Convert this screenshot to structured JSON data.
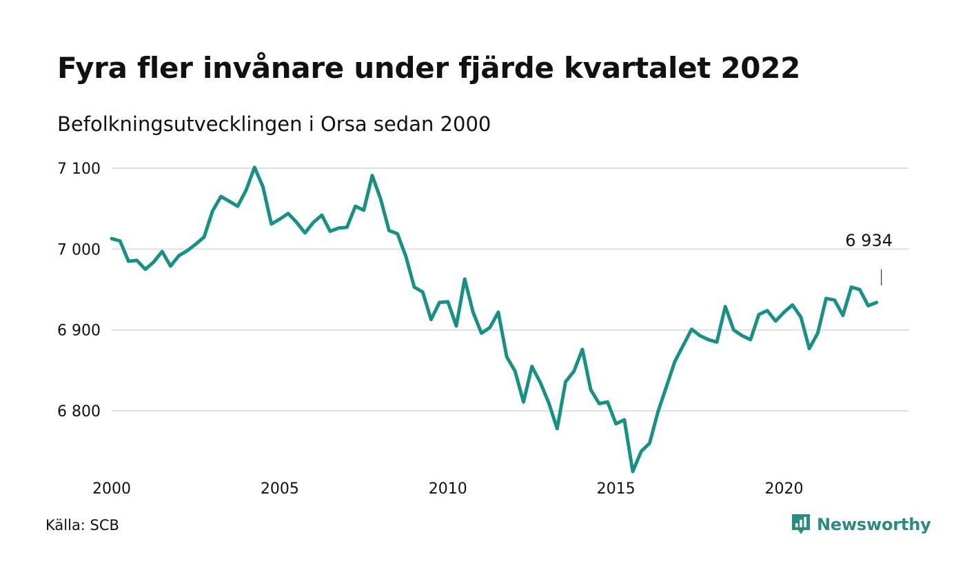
{
  "title": "Fyra fler invånare under fjärde kvartalet 2022",
  "subtitle": "Befolkningsutvecklingen i Orsa sedan 2000",
  "source": "Källa: SCB",
  "brand": {
    "name": "Newsworthy",
    "icon": "newsworthy-logo-icon",
    "color": "#2b8a83"
  },
  "colors": {
    "line": "#169185",
    "grid": "#dedede",
    "text": "#111111"
  },
  "chart_data": {
    "type": "line",
    "title": "Fyra fler invånare under fjärde kvartalet 2022",
    "subtitle": "Befolkningsutvecklingen i Orsa sedan 2000",
    "xlabel": "",
    "ylabel": "",
    "xlim": [
      2000,
      2023.7
    ],
    "ylim": [
      6720,
      7100
    ],
    "y_ticks": [
      6800,
      6900,
      7000,
      7100
    ],
    "y_tick_labels": [
      "6 800",
      "6 900",
      "7 000",
      "7 100"
    ],
    "x_ticks": [
      2000,
      2005,
      2010,
      2015,
      2020
    ],
    "x_tick_labels": [
      "2000",
      "2005",
      "2010",
      "2015",
      "2020"
    ],
    "grid": "horizontal",
    "series": [
      {
        "x": [
          2000.0,
          2000.25,
          2000.5,
          2000.75,
          2001.0,
          2001.25,
          2001.5,
          2001.75,
          2002.0,
          2002.25,
          2002.5,
          2002.75,
          2003.0,
          2003.25,
          2003.5,
          2003.75,
          2004.0,
          2004.25,
          2004.5,
          2004.75,
          2005.0,
          2005.25,
          2005.5,
          2005.75,
          2006.0,
          2006.25,
          2006.5,
          2006.75,
          2007.0,
          2007.25,
          2007.5,
          2007.75,
          2008.0,
          2008.25,
          2008.5,
          2008.75,
          2009.0,
          2009.25,
          2009.5,
          2009.75,
          2010.0,
          2010.25,
          2010.5,
          2010.75,
          2011.0,
          2011.25,
          2011.5,
          2011.75,
          2012.0,
          2012.25,
          2012.5,
          2012.75,
          2013.0,
          2013.25,
          2013.5,
          2013.75,
          2014.0,
          2014.25,
          2014.5,
          2014.75,
          2015.0,
          2015.25,
          2015.5,
          2015.75,
          2016.0,
          2016.25,
          2016.5,
          2016.75,
          2017.0,
          2017.25,
          2017.5,
          2017.75,
          2018.0,
          2018.25,
          2018.5,
          2018.75,
          2019.0,
          2019.25,
          2019.5,
          2019.75,
          2020.0,
          2020.25,
          2020.5,
          2020.75,
          2021.0,
          2021.25,
          2021.5,
          2021.75,
          2022.0,
          2022.25,
          2022.5,
          2022.75
        ],
        "y": [
          7013,
          7010,
          6985,
          6986,
          6975,
          6984,
          6997,
          6979,
          6992,
          6998,
          7006,
          7015,
          7047,
          7065,
          7059,
          7053,
          7073,
          7101,
          7077,
          7031,
          7037,
          7044,
          7033,
          7020,
          7033,
          7042,
          7022,
          7026,
          7027,
          7053,
          7048,
          7091,
          7062,
          7023,
          7019,
          6991,
          6953,
          6947,
          6913,
          6934,
          6935,
          6905,
          6963,
          6922,
          6896,
          6903,
          6922,
          6867,
          6849,
          6811,
          6855,
          6835,
          6810,
          6778,
          6836,
          6849,
          6876,
          6826,
          6809,
          6811,
          6784,
          6789,
          6725,
          6750,
          6760,
          6799,
          6830,
          6861,
          6881,
          6901,
          6893,
          6888,
          6885,
          6929,
          6900,
          6893,
          6888,
          6919,
          6924,
          6911,
          6922,
          6931,
          6916,
          6877,
          6896,
          6939,
          6937,
          6918,
          6953,
          6950,
          6930,
          6934
        ]
      }
    ],
    "annotations": [
      {
        "x": 2022.75,
        "y": 6934,
        "text": "6 934"
      }
    ]
  }
}
